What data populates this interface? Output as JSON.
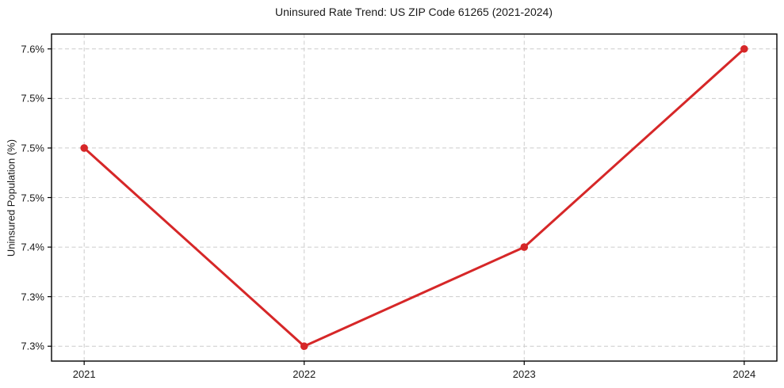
{
  "chart_data": {
    "type": "line",
    "title": "Uninsured Rate Trend: US ZIP Code 61265 (2021-2024)",
    "xlabel": "",
    "ylabel": "Uninsured Population (%)",
    "categories": [
      "2021",
      "2022",
      "2023",
      "2024"
    ],
    "series": [
      {
        "name": "Uninsured Rate",
        "values": [
          7.5,
          7.3,
          7.4,
          7.6
        ]
      }
    ],
    "ylim": [
      7.285,
      7.615
    ],
    "yticks": [
      7.6,
      7.55,
      7.5,
      7.45,
      7.4,
      7.35,
      7.3
    ],
    "ytick_labels": [
      "7.6%",
      "7.5%",
      "7.5%",
      "7.5%",
      "7.4%",
      "7.3%",
      "7.3%"
    ],
    "xtick_labels": [
      "2021",
      "2022",
      "2023",
      "2024"
    ],
    "grid": true,
    "grid_style": "dashed",
    "legend": "none",
    "line_color": "#d62728",
    "marker": "circle",
    "grid_color": "#cccccc",
    "axis_color": "#000000",
    "text_color": "#1a1a1a",
    "background": "#ffffff"
  }
}
